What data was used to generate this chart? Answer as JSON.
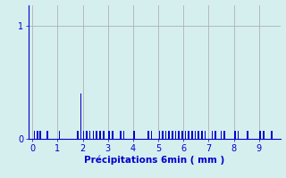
{
  "xlabel": "Précipitations 6min ( mm )",
  "ylabel": "",
  "xlim": [
    -0.15,
    9.85
  ],
  "ylim": [
    0,
    1.18
  ],
  "yticks": [
    0,
    1
  ],
  "xticks": [
    0,
    1,
    2,
    3,
    4,
    5,
    6,
    7,
    8,
    9
  ],
  "bg_color": "#d5efef",
  "bar_color": "#0000cc",
  "grid_color": "#b0b0b0",
  "bar_width": 0.055,
  "bars": [
    [
      0.08,
      0.07
    ],
    [
      0.2,
      0.07
    ],
    [
      0.32,
      0.07
    ],
    [
      0.6,
      0.07
    ],
    [
      1.08,
      0.07
    ],
    [
      1.8,
      0.07
    ],
    [
      1.92,
      0.4
    ],
    [
      2.04,
      0.07
    ],
    [
      2.16,
      0.07
    ],
    [
      2.28,
      0.07
    ],
    [
      2.42,
      0.07
    ],
    [
      2.55,
      0.07
    ],
    [
      2.7,
      0.07
    ],
    [
      2.84,
      0.07
    ],
    [
      3.05,
      0.07
    ],
    [
      3.18,
      0.07
    ],
    [
      3.5,
      0.07
    ],
    [
      3.63,
      0.07
    ],
    [
      4.05,
      0.07
    ],
    [
      4.6,
      0.07
    ],
    [
      4.73,
      0.07
    ],
    [
      5.05,
      0.07
    ],
    [
      5.18,
      0.07
    ],
    [
      5.3,
      0.07
    ],
    [
      5.43,
      0.07
    ],
    [
      5.56,
      0.07
    ],
    [
      5.69,
      0.07
    ],
    [
      5.82,
      0.07
    ],
    [
      5.95,
      0.07
    ],
    [
      6.08,
      0.07
    ],
    [
      6.21,
      0.07
    ],
    [
      6.34,
      0.07
    ],
    [
      6.47,
      0.07
    ],
    [
      6.6,
      0.07
    ],
    [
      6.73,
      0.07
    ],
    [
      6.86,
      0.07
    ],
    [
      7.15,
      0.07
    ],
    [
      7.28,
      0.07
    ],
    [
      7.5,
      0.07
    ],
    [
      7.63,
      0.07
    ],
    [
      8.05,
      0.07
    ],
    [
      8.18,
      0.07
    ],
    [
      8.55,
      0.07
    ],
    [
      9.05,
      0.07
    ],
    [
      9.18,
      0.07
    ],
    [
      9.5,
      0.07
    ]
  ]
}
